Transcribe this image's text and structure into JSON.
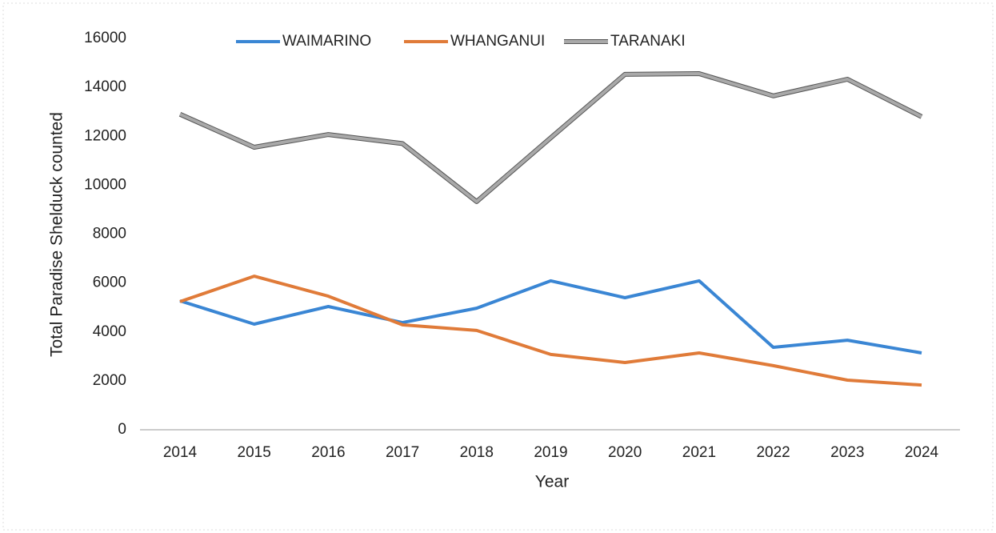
{
  "chart_data": {
    "type": "line",
    "x_label": "Year",
    "y_label": "Total Paradise Shelduck counted",
    "categories": [
      "2014",
      "2015",
      "2016",
      "2017",
      "2018",
      "2019",
      "2020",
      "2021",
      "2022",
      "2023",
      "2024"
    ],
    "series": [
      {
        "name": "WAIMARINO",
        "color": "#3a86d4",
        "values": [
          5270,
          4320,
          5040,
          4380,
          4970,
          6090,
          5400,
          6090,
          3370,
          3660,
          3140
        ]
      },
      {
        "name": "WHANGANUI",
        "color": "#e07b39",
        "values": [
          5240,
          6280,
          5460,
          4290,
          4060,
          3080,
          2750,
          3140,
          2620,
          2030,
          1830
        ]
      },
      {
        "name": "TARANAKI",
        "color": "#a9a9a9",
        "values": [
          12900,
          11550,
          12070,
          11700,
          9330,
          11940,
          14530,
          14560,
          13650,
          14330,
          12800
        ]
      }
    ],
    "ylim": [
      0,
      16000
    ],
    "yticks": [
      0,
      2000,
      4000,
      6000,
      8000,
      10000,
      12000,
      14000,
      16000
    ],
    "grid": false,
    "legend": "top"
  }
}
